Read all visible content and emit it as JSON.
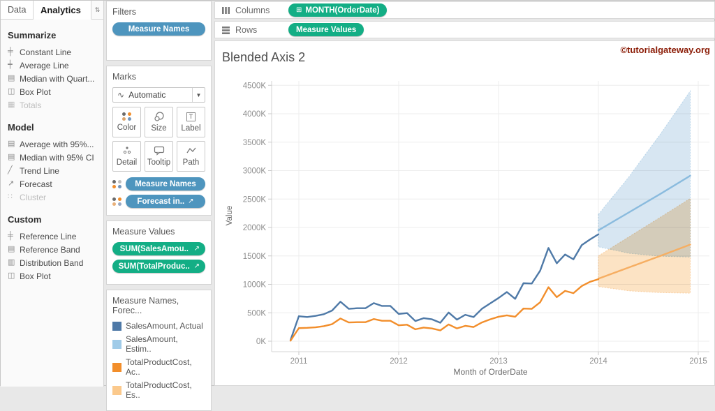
{
  "tabs": {
    "data_label": "Data",
    "analytics_label": "Analytics"
  },
  "analytics_pane": {
    "sections": [
      {
        "title": "Summarize",
        "items": [
          {
            "label": "Constant Line",
            "icon": "constant-line-icon",
            "disabled": false
          },
          {
            "label": "Average Line",
            "icon": "average-line-icon",
            "disabled": false
          },
          {
            "label": "Median with Quart...",
            "icon": "median-quartiles-icon",
            "disabled": false
          },
          {
            "label": "Box Plot",
            "icon": "box-plot-icon",
            "disabled": false
          },
          {
            "label": "Totals",
            "icon": "totals-icon",
            "disabled": true
          }
        ]
      },
      {
        "title": "Model",
        "items": [
          {
            "label": "Average with 95%...",
            "icon": "average-ci-icon",
            "disabled": false
          },
          {
            "label": "Median with 95% CI",
            "icon": "median-ci-icon",
            "disabled": false
          },
          {
            "label": "Trend Line",
            "icon": "trend-line-icon",
            "disabled": false
          },
          {
            "label": "Forecast",
            "icon": "forecast-icon",
            "disabled": false
          },
          {
            "label": "Cluster",
            "icon": "cluster-icon",
            "disabled": true
          }
        ]
      },
      {
        "title": "Custom",
        "items": [
          {
            "label": "Reference Line",
            "icon": "reference-line-icon",
            "disabled": false
          },
          {
            "label": "Reference Band",
            "icon": "reference-band-icon",
            "disabled": false
          },
          {
            "label": "Distribution Band",
            "icon": "distribution-band-icon",
            "disabled": false
          },
          {
            "label": "Box Plot",
            "icon": "box-plot-icon",
            "disabled": false
          }
        ]
      }
    ]
  },
  "filters_card": {
    "title": "Filters",
    "pill": "Measure Names"
  },
  "marks_card": {
    "title": "Marks",
    "mark_type": "Automatic",
    "buttons": [
      "Color",
      "Size",
      "Label",
      "Detail",
      "Tooltip",
      "Path"
    ],
    "pills": [
      {
        "label": "Measure Names"
      },
      {
        "label": "Forecast in.."
      }
    ]
  },
  "measure_values_card": {
    "title": "Measure Values",
    "pills": [
      "SUM(SalesAmou..",
      "SUM(TotalProduc.."
    ]
  },
  "legend_card": {
    "title": "Measure Names, Forec...",
    "entries": [
      {
        "label": "SalesAmount, Actual",
        "color": "#4e79a7"
      },
      {
        "label": "SalesAmount, Estim..",
        "color": "#a0cbe8"
      },
      {
        "label": "TotalProductCost, Ac..",
        "color": "#f28e2b"
      },
      {
        "label": "TotalProductCost, Es..",
        "color": "#fbc98c"
      }
    ]
  },
  "shelves": {
    "columns_label": "Columns",
    "columns_pill": "MONTH(OrderDate)",
    "rows_label": "Rows",
    "rows_pill": "Measure Values"
  },
  "worksheet": {
    "title": "Blended Axis 2",
    "watermark": "©tutorialgateway.org"
  },
  "chart_data": {
    "type": "line",
    "title": "Blended Axis 2",
    "xlabel": "Month of OrderDate",
    "ylabel": "Value",
    "x_ticks": [
      2011,
      2012,
      2013,
      2014,
      2015
    ],
    "y_ticks_k": [
      0,
      500,
      1000,
      1500,
      2000,
      2500,
      3000,
      3500,
      4000,
      4500
    ],
    "y_tick_suffix": "K",
    "ylim_k": [
      0,
      4500
    ],
    "grid": true,
    "legend_position": "left-card",
    "series_start_year_month": "2010-12",
    "series_start_x": 2010.9167,
    "series_step_years": 0.08333,
    "actual_series": [
      {
        "name": "SalesAmount, Actual",
        "color": "#4e79a7",
        "values_k": [
          20,
          440,
          425,
          445,
          475,
          540,
          695,
          570,
          580,
          580,
          670,
          620,
          620,
          480,
          495,
          355,
          405,
          385,
          325,
          505,
          380,
          465,
          425,
          570,
          665,
          760,
          865,
          745,
          1020,
          1015,
          1240,
          1640,
          1370,
          1525,
          1440,
          1690,
          1790,
          1880
        ]
      },
      {
        "name": "TotalProductCost, Actual",
        "color": "#f28e2b",
        "values_k": [
          10,
          230,
          235,
          245,
          265,
          300,
          400,
          330,
          335,
          335,
          390,
          360,
          360,
          280,
          290,
          210,
          240,
          225,
          190,
          295,
          225,
          270,
          250,
          330,
          385,
          430,
          455,
          430,
          575,
          570,
          685,
          950,
          775,
          885,
          845,
          970,
          1045,
          1090
        ]
      }
    ],
    "forecast_series": [
      {
        "name": "SalesAmount, Estimate",
        "line_color": "#8abbde",
        "band_color": "#d7e6f2",
        "x": [
          2014.0,
          2014.31,
          2014.62,
          2014.92
        ],
        "estimate_k": [
          1950,
          2270,
          2590,
          2910
        ],
        "upper_k": [
          2230,
          2900,
          3640,
          4400
        ],
        "lower_k": [
          1660,
          1545,
          1495,
          1480
        ]
      },
      {
        "name": "TotalProductCost, Estimate",
        "line_color": "#f6ae62",
        "band_color": "#fce3c4",
        "x": [
          2014.0,
          2014.31,
          2014.62,
          2014.92
        ],
        "estimate_k": [
          1100,
          1300,
          1500,
          1700
        ],
        "upper_k": [
          1500,
          1840,
          2180,
          2510
        ],
        "lower_k": [
          960,
          885,
          855,
          845
        ]
      }
    ]
  }
}
